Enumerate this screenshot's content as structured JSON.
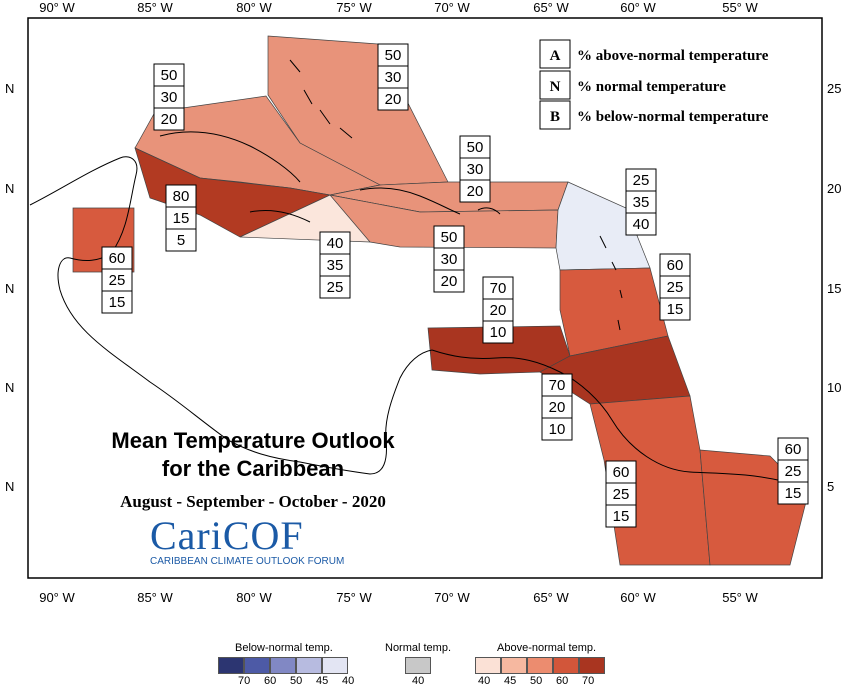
{
  "map": {
    "title_line1": "Mean Temperature Outlook",
    "title_line2": "for the Caribbean",
    "period": "August - September - October - 2020",
    "logo": {
      "name": "CariCOF",
      "subtitle": "CARIBBEAN CLIMATE OUTLOOK FORUM"
    },
    "lon_labels": [
      "90° W",
      "85° W",
      "80° W",
      "75° W",
      "70° W",
      "65° W",
      "60° W",
      "55° W"
    ],
    "lat_labels_left": [
      "N",
      "N",
      "N",
      "N",
      "N"
    ],
    "lat_labels_right": [
      "25",
      "20",
      "15",
      "10",
      "5"
    ],
    "key": [
      {
        "code": "A",
        "text": "% above-normal temperature"
      },
      {
        "code": "N",
        "text": "% normal temperature"
      },
      {
        "code": "B",
        "text": "% below-normal temperature"
      }
    ],
    "regions": [
      {
        "id": "bahamas",
        "above": "50",
        "normal": "30",
        "below": "20",
        "color": "#e8937a"
      },
      {
        "id": "cuba",
        "above": "50",
        "normal": "30",
        "below": "20",
        "color": "#e8937a"
      },
      {
        "id": "hispaniola",
        "above": "50",
        "normal": "30",
        "below": "20",
        "color": "#e8937a"
      },
      {
        "id": "cayman",
        "above": "80",
        "normal": "15",
        "below": "5",
        "color": "#b23a22"
      },
      {
        "id": "jamaica",
        "above": "40",
        "normal": "35",
        "below": "25",
        "color": "#fbe6dc"
      },
      {
        "id": "puerto-rico",
        "above": "50",
        "normal": "30",
        "below": "20",
        "color": "#e8937a"
      },
      {
        "id": "leeward",
        "above": "25",
        "normal": "35",
        "below": "40",
        "color": "#e8ecf6"
      },
      {
        "id": "belize",
        "above": "60",
        "normal": "25",
        "below": "15",
        "color": "#d75a3e"
      },
      {
        "id": "windward",
        "above": "60",
        "normal": "25",
        "below": "15",
        "color": "#d75a3e"
      },
      {
        "id": "abc-islands",
        "above": "70",
        "normal": "20",
        "below": "10",
        "color": "#a93520"
      },
      {
        "id": "trinidad",
        "above": "70",
        "normal": "20",
        "below": "10",
        "color": "#a93520"
      },
      {
        "id": "guyana",
        "above": "60",
        "normal": "25",
        "below": "15",
        "color": "#d75a3e"
      },
      {
        "id": "suriname-guiana",
        "above": "60",
        "normal": "25",
        "below": "15",
        "color": "#d75a3e"
      }
    ],
    "colorbar": {
      "below_label": "Below-normal temp.",
      "normal_label": "Normal temp.",
      "above_label": "Above-normal temp.",
      "below_ticks": [
        "70",
        "60",
        "50",
        "45",
        "40"
      ],
      "normal_ticks": [
        "40"
      ],
      "above_ticks": [
        "40",
        "45",
        "50",
        "60",
        "70"
      ],
      "below_colors": [
        "#2c3571",
        "#4d5aa6",
        "#8188c4",
        "#b7bbe0",
        "#e3e5f3"
      ],
      "normal_color": "#c8c8c8",
      "above_colors": [
        "#fbe1d6",
        "#f6b8a0",
        "#ec8c6f",
        "#d2563a",
        "#a93520"
      ]
    }
  }
}
